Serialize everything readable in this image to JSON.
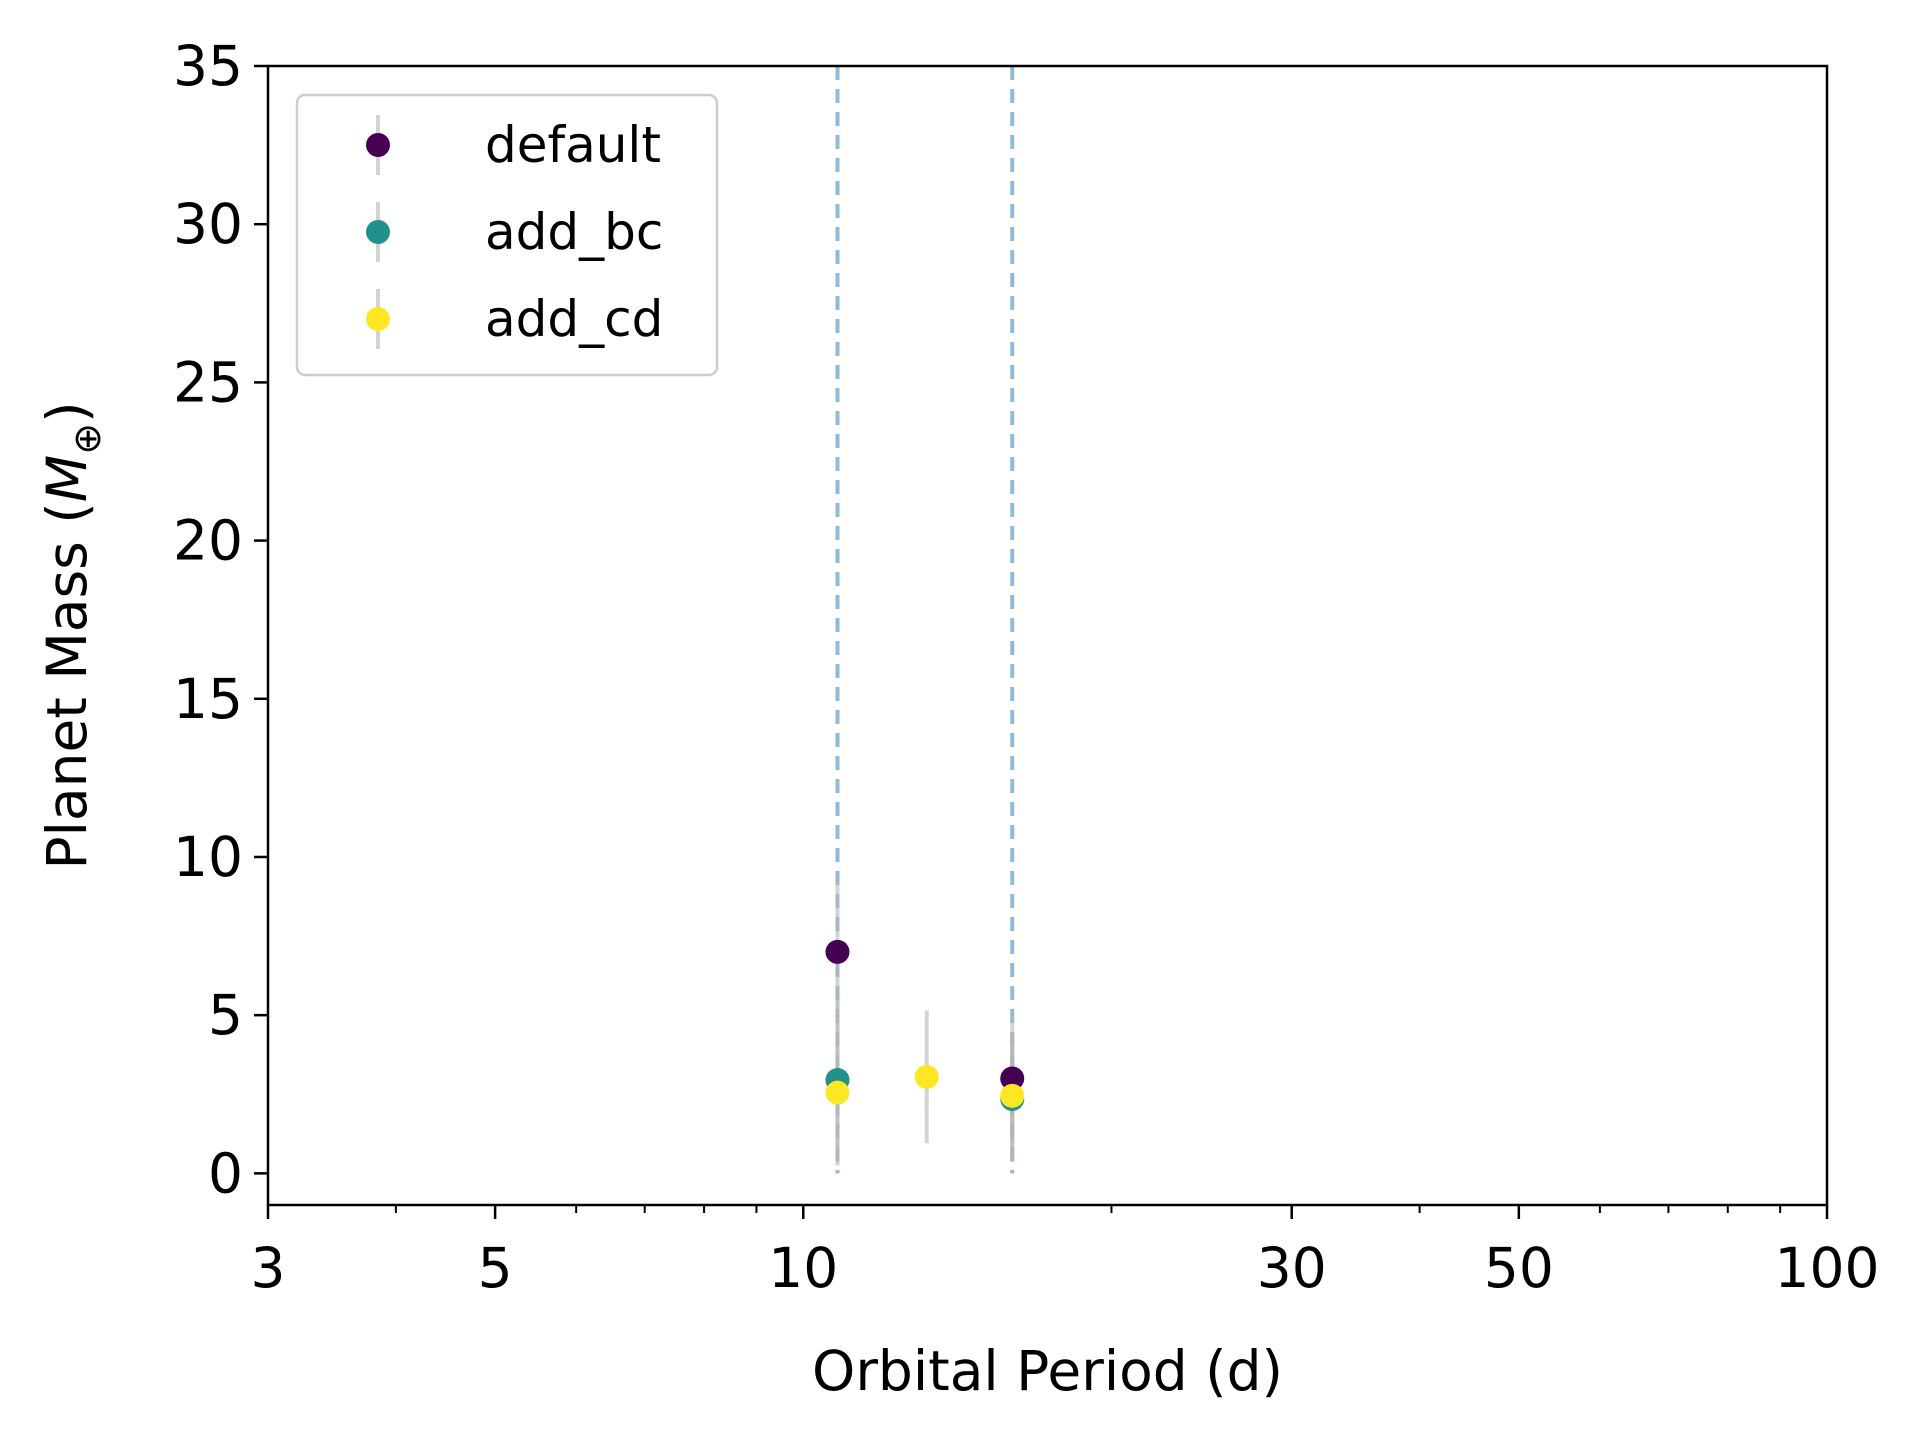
{
  "chart_data": {
    "type": "scatter",
    "title": "",
    "xlabel": "Orbital Period (d)",
    "ylabel": "Planet Mass (",
    "ylabel_symbol": "M",
    "ylabel_subscript": "⊕",
    "ylabel_close": ")",
    "x_scale": "log",
    "xlim": [
      3,
      100
    ],
    "ylim": [
      -1,
      35
    ],
    "x_ticks": [
      3,
      5,
      10,
      30,
      50,
      100
    ],
    "x_tick_labels": [
      "3",
      "5",
      "10",
      "30",
      "50",
      "100"
    ],
    "x_minor_ticks": [
      4,
      6,
      7,
      8,
      9,
      20,
      40,
      60,
      70,
      80,
      90
    ],
    "y_ticks": [
      0,
      5,
      10,
      15,
      20,
      25,
      30,
      35
    ],
    "y_tick_labels": [
      "0",
      "5",
      "10",
      "15",
      "20",
      "25",
      "30",
      "35"
    ],
    "grid": false,
    "legend_position": "top-left",
    "reference_lines": {
      "orientation": "vertical",
      "style": "dashed",
      "color": "#1f77b4",
      "x": [
        10.8,
        16.0
      ],
      "y_range": [
        0,
        35
      ]
    },
    "series": [
      {
        "name": "default",
        "color": "#440154",
        "points": [
          {
            "x": 10.8,
            "y": 7.0,
            "err": 2.2
          },
          {
            "x": 16.0,
            "y": 3.0,
            "err": 2.0
          }
        ]
      },
      {
        "name": "add_bc",
        "color": "#21918c",
        "points": [
          {
            "x": 10.8,
            "y": 2.95,
            "err": 2.6
          },
          {
            "x": 16.0,
            "y": 2.35,
            "err": 2.0
          }
        ]
      },
      {
        "name": "add_cd",
        "color": "#fde725",
        "points": [
          {
            "x": 10.8,
            "y": 2.55,
            "err": 2.3
          },
          {
            "x": 13.2,
            "y": 3.05,
            "err": 2.1
          },
          {
            "x": 16.0,
            "y": 2.45,
            "err": 2.0
          }
        ]
      }
    ]
  }
}
